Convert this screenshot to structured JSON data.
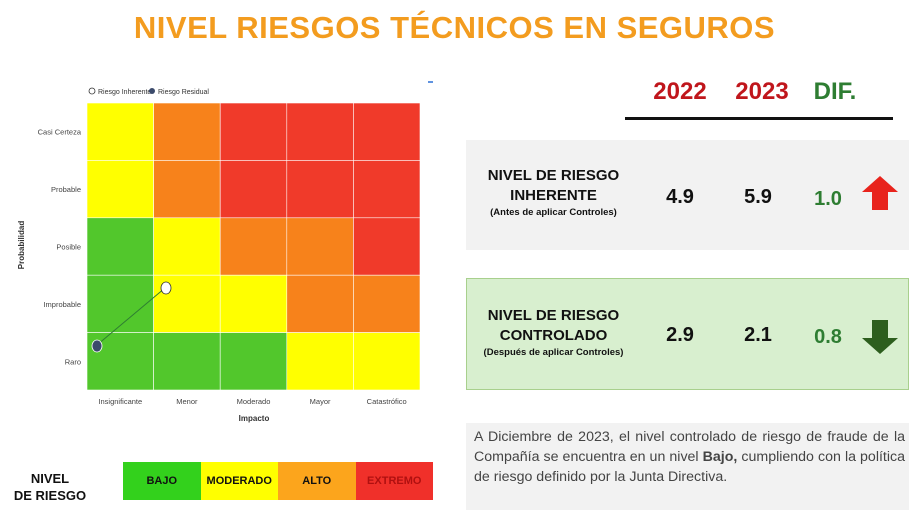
{
  "title": "NIVEL RIESGOS TÉCNICOS EN SEGUROS",
  "matrix": {
    "legend": [
      "Riesgo Inherente",
      "Riesgo Residual"
    ],
    "y_axis_label": "Probabilidad",
    "x_axis_label": "Impacto",
    "y_labels": [
      "Casi Certeza",
      "Probable",
      "Posible",
      "Improbable",
      "Raro"
    ],
    "x_labels": [
      "Insignificante",
      "Menor",
      "Moderado",
      "Mayor",
      "Catastrófico"
    ],
    "cell_colors": [
      [
        "#ffff00",
        "#f7821b",
        "#f03a2a",
        "#f03a2a",
        "#f03a2a"
      ],
      [
        "#ffff00",
        "#f7821b",
        "#f03a2a",
        "#f03a2a",
        "#f03a2a"
      ],
      [
        "#52c72c",
        "#ffff00",
        "#f7821b",
        "#f7821b",
        "#f03a2a"
      ],
      [
        "#52c72c",
        "#ffff00",
        "#ffff00",
        "#f7821b",
        "#f7821b"
      ],
      [
        "#52c72c",
        "#52c72c",
        "#52c72c",
        "#ffff00",
        "#ffff00"
      ]
    ]
  },
  "summary": {
    "headers": [
      "2022",
      "2023",
      "DIF."
    ],
    "rows": [
      {
        "label": [
          "NIVEL DE RIESGO",
          "INHERENTE"
        ],
        "note": "(Antes de aplicar  Controles)",
        "values": [
          "4.9",
          "5.9",
          "1.0"
        ]
      },
      {
        "label": [
          "NIVEL DE RIESGO",
          "CONTROLADO"
        ],
        "note": "(Después de aplicar  Controles)",
        "values": [
          "2.9",
          "2.1",
          "0.8"
        ]
      }
    ]
  },
  "paragraph": {
    "before": "A Diciembre de 2023, el nivel controlado de riesgo de fraude de la Compañía se encuentra en un nivel ",
    "bold": "Bajo,",
    "after": " cumpliendo con la política de riesgo definido por la Junta Directiva."
  },
  "scale": {
    "label": [
      "NIVEL",
      "DE RIESGO"
    ],
    "levels": [
      "BAJO",
      "MODERADO",
      "ALTO",
      "EXTREMO"
    ]
  }
}
